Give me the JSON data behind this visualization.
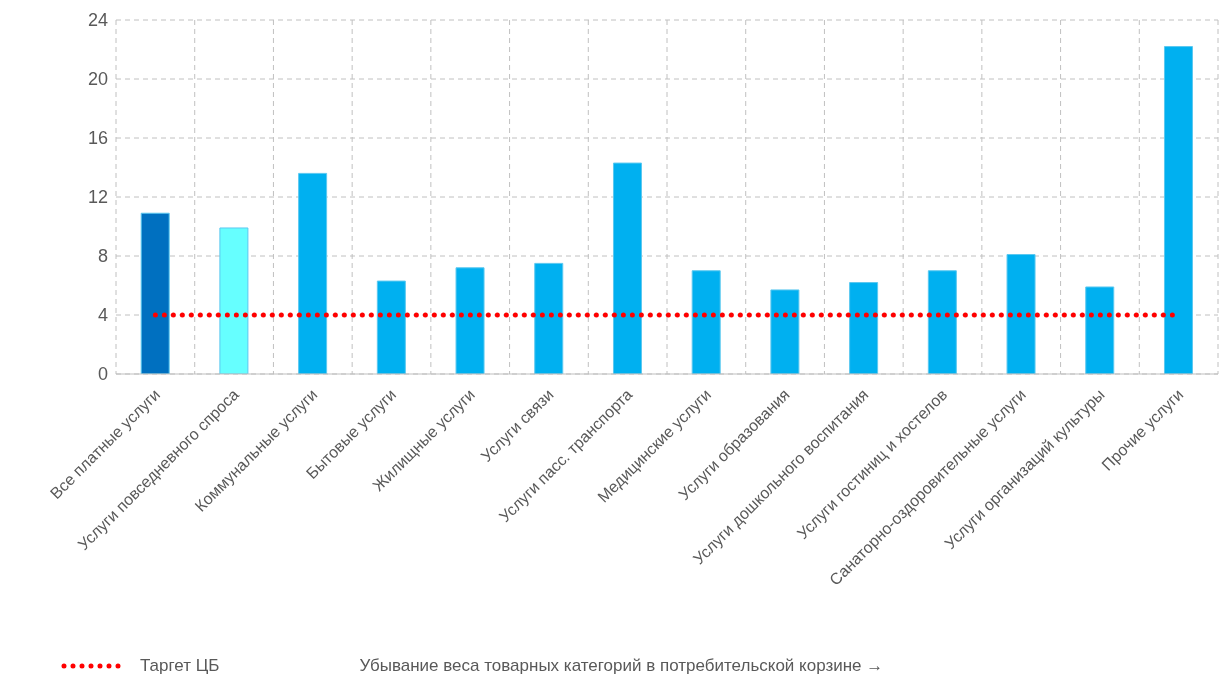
{
  "chart_data": {
    "type": "bar",
    "categories": [
      "Все платные услуги",
      "Услуги повседневного спроса",
      "Коммунальные услуги",
      "Бытовые услуги",
      "Жилищные услуги",
      "Услуги связи",
      "Услуги пасс. транспорта",
      "Медицинские услуги",
      "Услуги образования",
      "Услуги дошкольного воспитания",
      "Услуги гостиниц и хостелов",
      "Санаторно-оздоровительные услуги",
      "Услуги организаций культуры",
      "Прочие услуги"
    ],
    "series": [
      {
        "colors": [
          "#0070c0",
          "#66ffff",
          "#00b0f0",
          "#00b0f0",
          "#00b0f0",
          "#00b0f0",
          "#00b0f0",
          "#00b0f0",
          "#00b0f0",
          "#00b0f0",
          "#00b0f0",
          "#00b0f0",
          "#00b0f0",
          "#00b0f0"
        ],
        "values": [
          10.9,
          9.9,
          13.6,
          6.3,
          7.2,
          7.5,
          14.3,
          7.0,
          5.7,
          6.2,
          7.0,
          8.1,
          5.9,
          22.2
        ]
      },
      {
        "type": "line",
        "name": "Таргет ЦБ",
        "color": "#ff0000",
        "line_style": "dotted",
        "values": [
          4,
          4,
          4,
          4,
          4,
          4,
          4,
          4,
          4,
          4,
          4,
          4,
          4,
          4
        ]
      }
    ],
    "ylim": [
      0,
      24
    ],
    "yticks": [
      0,
      4,
      8,
      12,
      16,
      20,
      24
    ],
    "grid": true,
    "legend": "bottom left",
    "annotations": [
      "Убывание веса товарных категорий в потребительской корзине →"
    ]
  }
}
